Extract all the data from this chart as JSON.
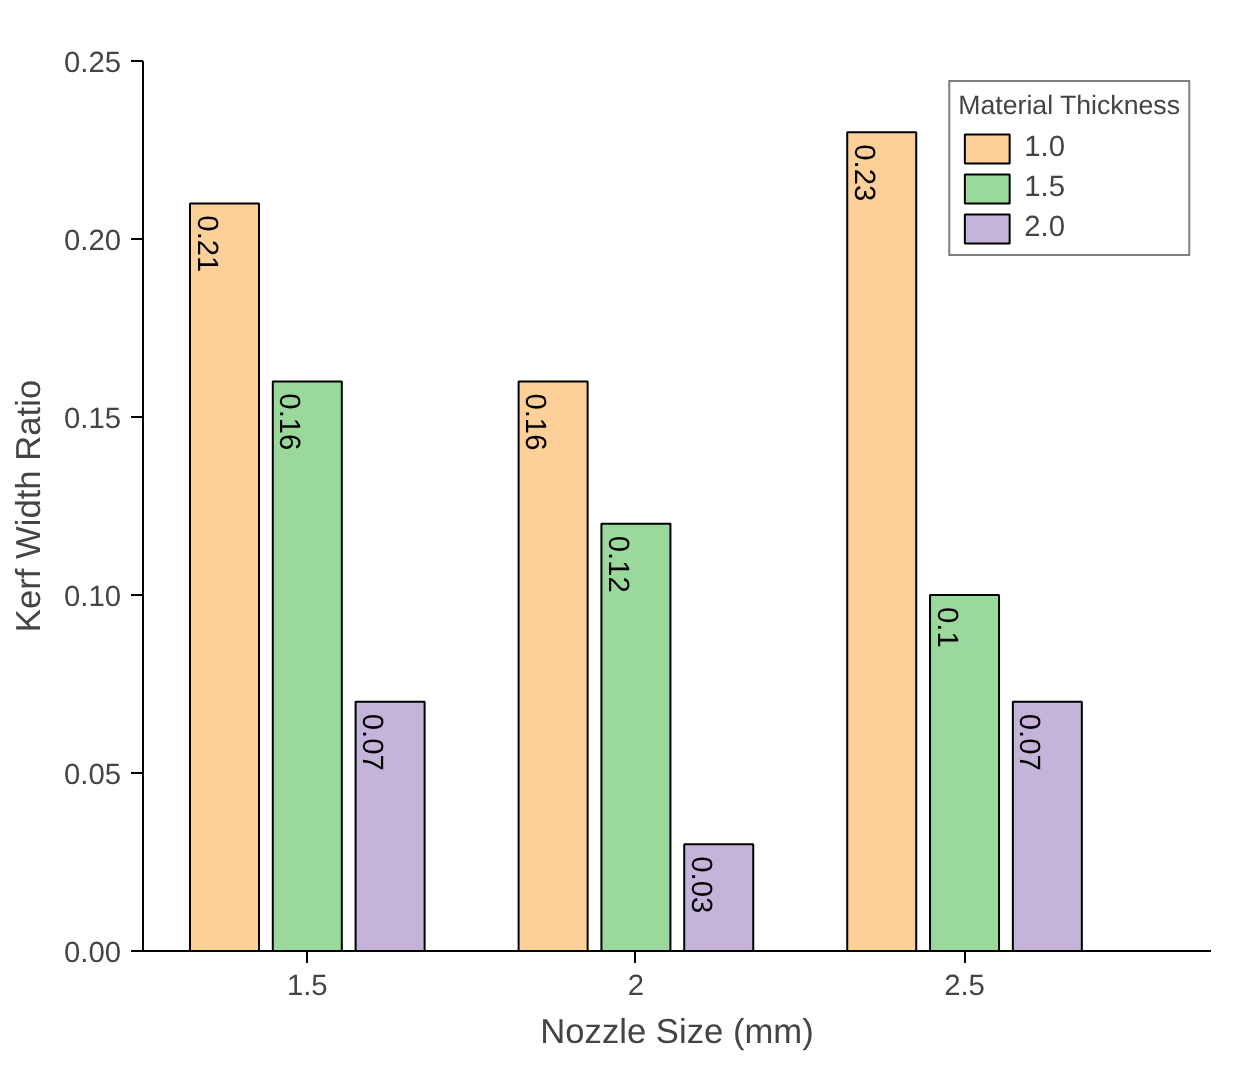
{
  "chart_data": {
    "type": "bar",
    "xlabel": "Nozzle Size (mm)",
    "ylabel": "Kerf Width Ratio",
    "legend_title": "Material Thickness",
    "categories": [
      "1.5",
      "2",
      "2.5"
    ],
    "series": [
      {
        "name": "1.0",
        "color": "#fdd09a",
        "values": [
          0.21,
          0.16,
          0.23
        ]
      },
      {
        "name": "1.5",
        "color": "#9ad89b",
        "values": [
          0.16,
          0.12,
          0.1
        ]
      },
      {
        "name": "2.0",
        "color": "#c5b4da",
        "values": [
          0.07,
          0.03,
          0.07
        ]
      }
    ],
    "ylim": [
      0,
      0.25
    ],
    "yticks": [
      {
        "value": 0,
        "label": "0.00"
      },
      {
        "value": 0.05,
        "label": "0.05"
      },
      {
        "value": 0.1,
        "label": "0.10"
      },
      {
        "value": 0.15,
        "label": "0.15"
      },
      {
        "value": 0.2,
        "label": "0.20"
      },
      {
        "value": 0.25,
        "label": "0.25"
      }
    ],
    "data_labels": true,
    "grid": false,
    "legend": "top right"
  }
}
